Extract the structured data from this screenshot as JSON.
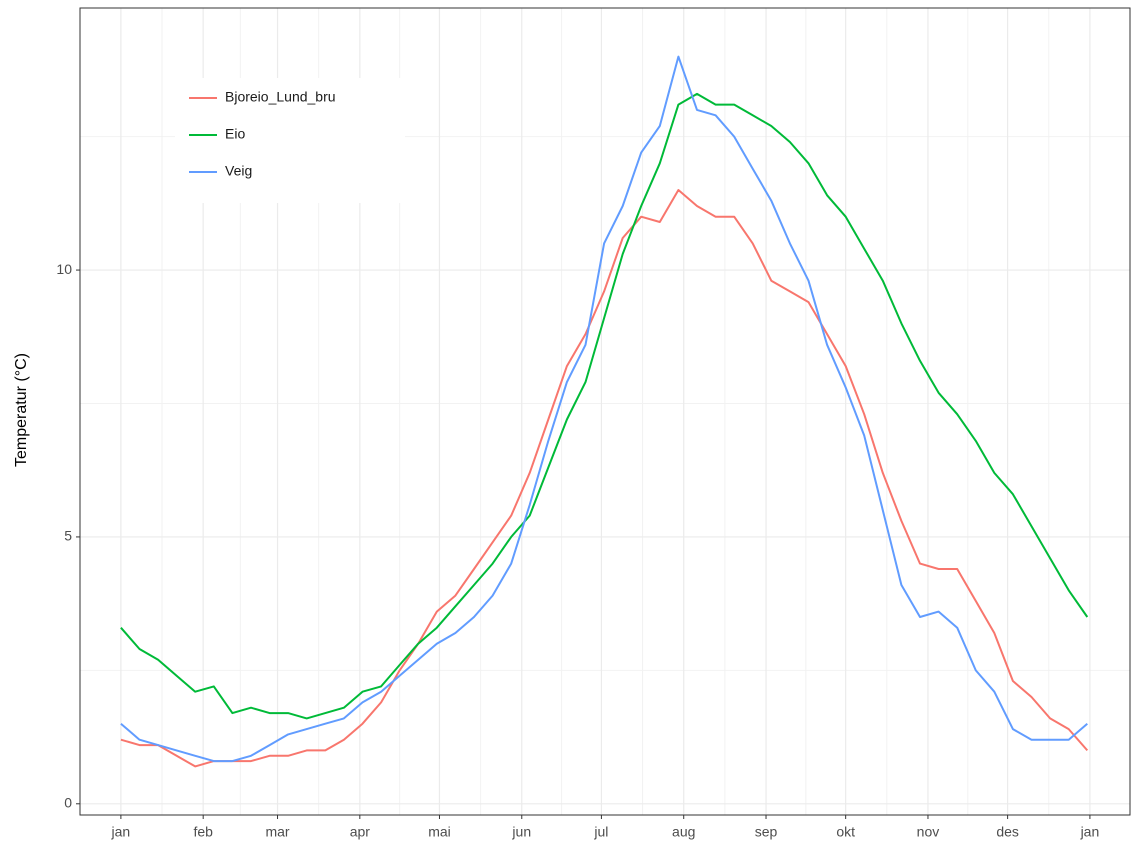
{
  "chart_data": {
    "type": "line",
    "y_label": "Temperatur (°C)",
    "x": [
      1,
      8,
      15,
      22,
      29,
      36,
      43,
      50,
      57,
      64,
      71,
      78,
      85,
      92,
      99,
      106,
      113,
      120,
      127,
      134,
      141,
      148,
      155,
      162,
      169,
      176,
      183,
      190,
      197,
      204,
      211,
      218,
      225,
      232,
      239,
      246,
      253,
      260,
      267,
      274,
      281,
      288,
      295,
      302,
      309,
      316,
      323,
      330,
      337,
      344,
      351,
      358,
      365
    ],
    "series": [
      {
        "name": "Bjoreio_Lund_bru",
        "color": "#F8766D",
        "values": [
          1.2,
          1.1,
          1.1,
          0.9,
          0.7,
          0.8,
          0.8,
          0.8,
          0.9,
          0.9,
          1.0,
          1.0,
          1.2,
          1.5,
          1.9,
          2.5,
          3.0,
          3.6,
          3.9,
          4.4,
          4.9,
          5.4,
          6.2,
          7.2,
          8.2,
          8.8,
          9.6,
          10.6,
          11.0,
          10.9,
          11.5,
          11.2,
          11.0,
          11.0,
          10.5,
          9.8,
          9.6,
          9.4,
          8.8,
          8.2,
          7.3,
          6.2,
          5.3,
          4.5,
          4.4,
          4.4,
          3.8,
          3.2,
          2.3,
          2.0,
          1.6,
          1.4,
          1.0
        ]
      },
      {
        "name": "Eio",
        "color": "#00BA38",
        "values": [
          3.3,
          2.9,
          2.7,
          2.4,
          2.1,
          2.2,
          1.7,
          1.8,
          1.7,
          1.7,
          1.6,
          1.7,
          1.8,
          2.1,
          2.2,
          2.6,
          3.0,
          3.3,
          3.7,
          4.1,
          4.5,
          5.0,
          5.4,
          6.3,
          7.2,
          7.9,
          9.1,
          10.3,
          11.2,
          12.0,
          13.1,
          13.3,
          13.1,
          13.1,
          12.9,
          12.7,
          12.4,
          12.0,
          11.4,
          11.0,
          10.4,
          9.8,
          9.0,
          8.3,
          7.7,
          7.3,
          6.8,
          6.2,
          5.8,
          5.2,
          4.6,
          4.0,
          3.5
        ]
      },
      {
        "name": "Veig",
        "color": "#619CFF",
        "values": [
          1.5,
          1.2,
          1.1,
          1.0,
          0.9,
          0.8,
          0.8,
          0.9,
          1.1,
          1.3,
          1.4,
          1.5,
          1.6,
          1.9,
          2.1,
          2.4,
          2.7,
          3.0,
          3.2,
          3.5,
          3.9,
          4.5,
          5.6,
          6.8,
          7.9,
          8.6,
          10.5,
          11.2,
          12.2,
          12.7,
          14.0,
          13.0,
          12.9,
          12.5,
          11.9,
          11.3,
          10.5,
          9.8,
          8.6,
          7.8,
          6.9,
          5.5,
          4.1,
          3.5,
          3.6,
          3.3,
          2.5,
          2.1,
          1.4,
          1.2,
          1.2,
          1.2,
          1.5
        ]
      }
    ],
    "xlim": [
      -14.4,
      381.1
    ],
    "xticks": [
      {
        "value": 1,
        "label": "jan"
      },
      {
        "value": 32,
        "label": "feb"
      },
      {
        "value": 60,
        "label": "mar"
      },
      {
        "value": 91,
        "label": "apr"
      },
      {
        "value": 121,
        "label": "mai"
      },
      {
        "value": 152,
        "label": "jun"
      },
      {
        "value": 182,
        "label": "jul"
      },
      {
        "value": 213,
        "label": "aug"
      },
      {
        "value": 244,
        "label": "sep"
      },
      {
        "value": 274,
        "label": "okt"
      },
      {
        "value": 305,
        "label": "nov"
      },
      {
        "value": 335,
        "label": "des"
      },
      {
        "value": 366,
        "label": "jan"
      }
    ],
    "ylim": [
      -0.21,
      14.91
    ],
    "yticks": [
      0,
      5,
      10
    ],
    "grid": true,
    "legend_position": "top-left"
  }
}
